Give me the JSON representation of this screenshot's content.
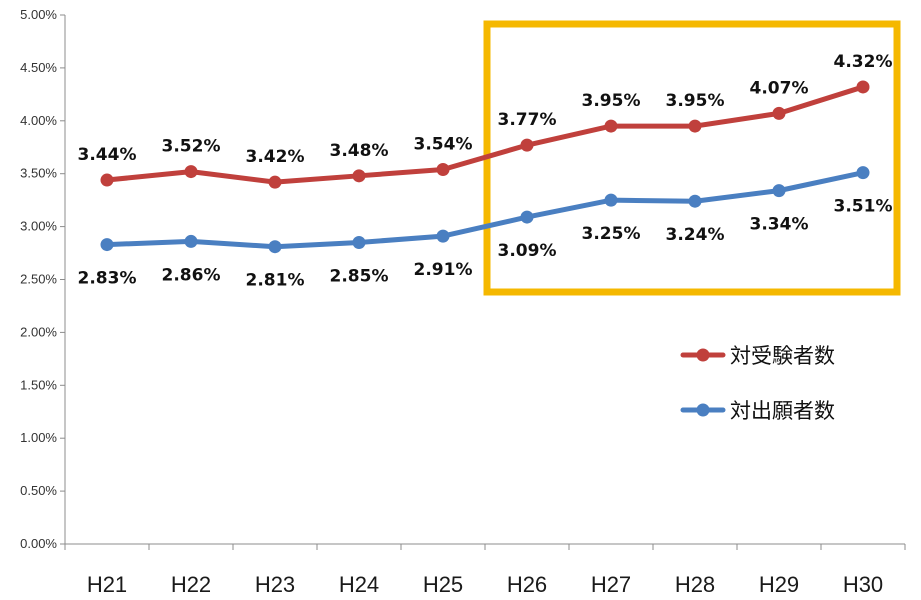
{
  "chart_data": {
    "type": "line",
    "categories": [
      "H21",
      "H22",
      "H23",
      "H24",
      "H25",
      "H26",
      "H27",
      "H28",
      "H29",
      "H30"
    ],
    "series": [
      {
        "name": "対受験者数",
        "values": [
          3.44,
          3.52,
          3.42,
          3.48,
          3.54,
          3.77,
          3.95,
          3.95,
          4.07,
          4.32
        ],
        "labels": [
          "3.44%",
          "3.52%",
          "3.42%",
          "3.48%",
          "3.54%",
          "3.77%",
          "3.95%",
          "3.95%",
          "4.07%",
          "4.32%"
        ],
        "color": "#c0403c"
      },
      {
        "name": "対出願者数",
        "values": [
          2.83,
          2.86,
          2.81,
          2.85,
          2.91,
          3.09,
          3.25,
          3.24,
          3.34,
          3.51
        ],
        "labels": [
          "2.83%",
          "2.86%",
          "2.81%",
          "2.85%",
          "2.91%",
          "3.09%",
          "3.25%",
          "3.24%",
          "3.34%",
          "3.51%"
        ],
        "color": "#4a7fc1"
      }
    ],
    "yticks": [
      "0.00%",
      "0.50%",
      "1.00%",
      "1.50%",
      "2.00%",
      "2.50%",
      "3.00%",
      "3.50%",
      "4.00%",
      "4.50%",
      "5.00%"
    ],
    "ylim": [
      0,
      5
    ],
    "grid": false,
    "legend_position": "right",
    "highlight": {
      "from": "H26",
      "to": "H30",
      "color": "#f5b800"
    }
  }
}
